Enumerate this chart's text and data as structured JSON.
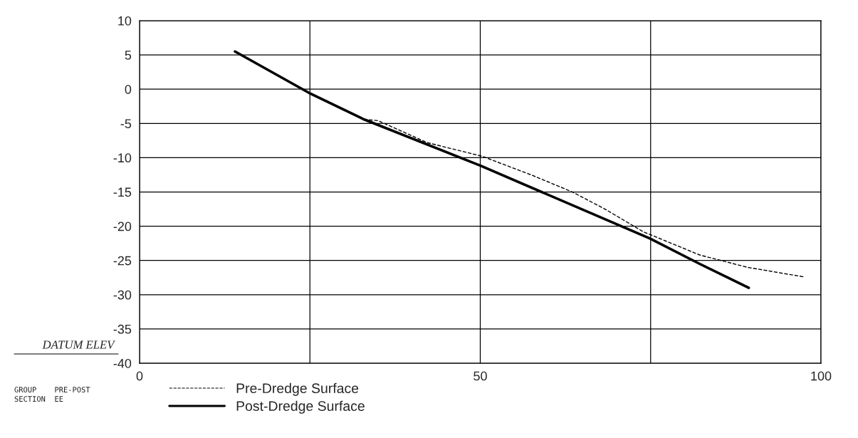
{
  "chart_data": {
    "type": "line",
    "ylabel": "DATUM ELEV",
    "annotations": [
      "GROUP    PRE-POST",
      "SECTION  EE"
    ],
    "series": [
      {
        "name": "Pre-Dredge Surface",
        "color": "#000000",
        "line_style": "dashed",
        "x": [
          32.9,
          35,
          42.2,
          50.3,
          57.7,
          63.5,
          68.3,
          73.9,
          82.2,
          89.2,
          97.5
        ],
        "values": [
          -4.4,
          -4.6,
          -7.8,
          -9.8,
          -12.6,
          -15.0,
          -17.5,
          -20.8,
          -24.2,
          -26.0,
          -27.4
        ]
      },
      {
        "name": "Post-Dredge Surface",
        "color": "#000000",
        "line_style": "solid",
        "x": [
          14.0,
          24.8,
          32.9,
          50.1,
          74.9,
          82.2,
          89.4
        ],
        "values": [
          5.5,
          -0.5,
          -4.4,
          -11.2,
          -21.8,
          -25.5,
          -29.0
        ]
      }
    ],
    "xlim": [
      0,
      100
    ],
    "xticks": [
      0,
      {
        "value": 25,
        "label": null
      },
      50,
      {
        "value": 75,
        "label": null
      },
      100
    ],
    "ylim": [
      -40,
      10
    ],
    "yticks": [
      -40,
      -35,
      -30,
      -25,
      -20,
      -15,
      -10,
      -5,
      0,
      5,
      10
    ],
    "grid": true,
    "legend": "bottom left",
    "marker": "none"
  }
}
